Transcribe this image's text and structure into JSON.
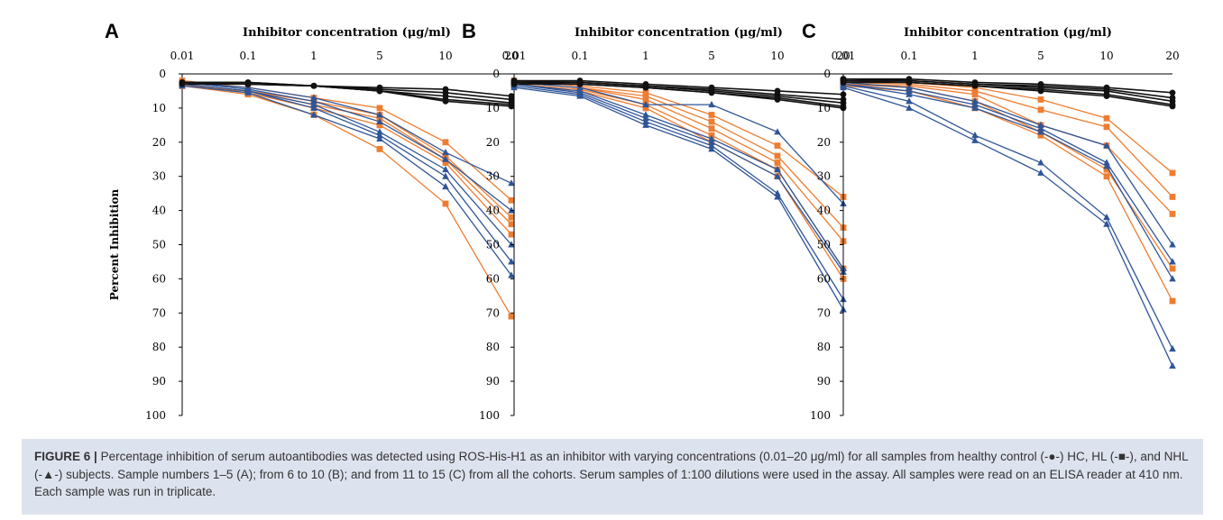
{
  "figure": {
    "caption_label": "FIGURE 6 |",
    "caption_text": "Percentage inhibition of serum autoantibodies was detected using ROS-His-H1 as an inhibitor with varying concentrations (0.01–20 μg/ml) for all samples from healthy control (-●-) HC, HL (-■-), and NHL (-▲-) subjects. Sample numbers 1–5 (A); from 6 to 10 (B); and from 11 to 15 (C) from all the cohorts. Serum samples of 1:100 dilutions were used in the assay. All samples were read on an ELISA reader at 410 nm. Each sample was run in triplicate."
  },
  "colors": {
    "HC": "#111111",
    "HL": "#ED7D31",
    "NHL": "#2F5597"
  },
  "chart_data": [
    {
      "panel": "A",
      "type": "line",
      "xlabel": "Inhibitor concentration (μg/ml)",
      "ylabel": "Percent Inhibition",
      "categories": [
        "0.01",
        "0.1",
        "1",
        "5",
        "10",
        "20"
      ],
      "ylim": [
        0,
        100
      ],
      "y_inverted": true,
      "yticks": [
        0,
        10,
        20,
        30,
        40,
        50,
        60,
        70,
        80,
        90,
        100
      ],
      "series": [
        {
          "group": "HC",
          "marker": "circle",
          "values": [
            2.5,
            2.5,
            3.5,
            4.0,
            4.5,
            6.5
          ]
        },
        {
          "group": "HC",
          "marker": "circle",
          "values": [
            2.5,
            2.5,
            3.5,
            4.5,
            5.5,
            7.5
          ]
        },
        {
          "group": "HC",
          "marker": "circle",
          "values": [
            2.5,
            3.0,
            3.5,
            5.0,
            6.5,
            8.5
          ]
        },
        {
          "group": "HC",
          "marker": "circle",
          "values": [
            2.5,
            3.0,
            3.5,
            5.0,
            7.5,
            9.0
          ]
        },
        {
          "group": "HC",
          "marker": "circle",
          "values": [
            3.0,
            3.0,
            3.5,
            5.0,
            8.0,
            9.5
          ]
        },
        {
          "group": "HL",
          "marker": "square",
          "values": [
            2.0,
            4.0,
            7.0,
            10.0,
            20.0,
            37.0
          ]
        },
        {
          "group": "HL",
          "marker": "square",
          "values": [
            3.0,
            5.0,
            8.0,
            12.0,
            24.0,
            42.0
          ]
        },
        {
          "group": "HL",
          "marker": "square",
          "values": [
            3.5,
            5.0,
            9.0,
            13.0,
            25.0,
            44.0
          ]
        },
        {
          "group": "HL",
          "marker": "square",
          "values": [
            3.0,
            5.5,
            10.0,
            15.0,
            26.0,
            47.0
          ]
        },
        {
          "group": "HL",
          "marker": "square",
          "values": [
            3.5,
            6.0,
            12.0,
            22.0,
            38.0,
            71.0
          ]
        },
        {
          "group": "NHL",
          "marker": "triangle",
          "values": [
            2.5,
            4.0,
            7.0,
            12.0,
            23.0,
            32.0
          ]
        },
        {
          "group": "NHL",
          "marker": "triangle",
          "values": [
            2.5,
            4.5,
            8.0,
            14.0,
            25.0,
            40.0
          ]
        },
        {
          "group": "NHL",
          "marker": "triangle",
          "values": [
            3.0,
            5.0,
            9.0,
            17.0,
            28.0,
            50.0
          ]
        },
        {
          "group": "NHL",
          "marker": "triangle",
          "values": [
            3.0,
            5.0,
            10.0,
            18.0,
            30.0,
            55.0
          ]
        },
        {
          "group": "NHL",
          "marker": "triangle",
          "values": [
            3.5,
            5.5,
            12.0,
            19.0,
            33.0,
            59.0
          ]
        }
      ]
    },
    {
      "panel": "B",
      "type": "line",
      "xlabel": "Inhibitor concentration (μg/ml)",
      "ylabel": "",
      "categories": [
        "0.01",
        "0.1",
        "1",
        "5",
        "10",
        "20"
      ],
      "ylim": [
        0,
        100
      ],
      "y_inverted": true,
      "yticks": [
        0,
        10,
        20,
        30,
        40,
        50,
        60,
        70,
        80,
        90,
        100
      ],
      "series": [
        {
          "group": "HC",
          "marker": "circle",
          "values": [
            2.0,
            2.0,
            3.0,
            4.0,
            5.0,
            6.0
          ]
        },
        {
          "group": "HC",
          "marker": "circle",
          "values": [
            2.0,
            2.5,
            3.5,
            4.5,
            6.0,
            7.5
          ]
        },
        {
          "group": "HC",
          "marker": "circle",
          "values": [
            2.5,
            2.5,
            3.5,
            5.0,
            6.5,
            8.5
          ]
        },
        {
          "group": "HC",
          "marker": "circle",
          "values": [
            2.5,
            3.0,
            4.0,
            5.5,
            7.0,
            9.5
          ]
        },
        {
          "group": "HC",
          "marker": "circle",
          "values": [
            3.0,
            3.0,
            4.0,
            5.5,
            7.5,
            10.0
          ]
        },
        {
          "group": "HL",
          "marker": "square",
          "values": [
            2.0,
            3.5,
            5.5,
            12.0,
            21.0,
            36.0
          ]
        },
        {
          "group": "HL",
          "marker": "square",
          "values": [
            2.5,
            4.0,
            6.5,
            14.0,
            24.0,
            45.0
          ]
        },
        {
          "group": "HL",
          "marker": "square",
          "values": [
            2.5,
            4.0,
            7.5,
            16.0,
            26.0,
            49.0
          ]
        },
        {
          "group": "HL",
          "marker": "square",
          "values": [
            3.0,
            4.5,
            9.0,
            18.0,
            28.0,
            57.0
          ]
        },
        {
          "group": "HL",
          "marker": "square",
          "values": [
            3.0,
            5.0,
            10.0,
            20.0,
            30.0,
            60.0
          ]
        },
        {
          "group": "NHL",
          "marker": "triangle",
          "values": [
            2.5,
            4.0,
            9.0,
            9.0,
            17.0,
            38.0
          ]
        },
        {
          "group": "NHL",
          "marker": "triangle",
          "values": [
            3.0,
            5.0,
            12.0,
            19.0,
            28.0,
            57.0
          ]
        },
        {
          "group": "NHL",
          "marker": "triangle",
          "values": [
            3.0,
            5.5,
            13.0,
            20.0,
            30.0,
            58.0
          ]
        },
        {
          "group": "NHL",
          "marker": "triangle",
          "values": [
            3.5,
            6.0,
            14.0,
            21.0,
            35.0,
            66.0
          ]
        },
        {
          "group": "NHL",
          "marker": "triangle",
          "values": [
            4.0,
            6.5,
            15.0,
            22.0,
            36.0,
            69.0
          ]
        }
      ]
    },
    {
      "panel": "C",
      "type": "line",
      "xlabel": "Inhibitor concentration (μg/ml)",
      "ylabel": "",
      "categories": [
        "0.01",
        "0.1",
        "1",
        "5",
        "10",
        "20"
      ],
      "ylim": [
        0,
        100
      ],
      "y_inverted": true,
      "yticks": [
        0,
        10,
        20,
        30,
        40,
        50,
        60,
        70,
        80,
        90,
        100
      ],
      "series": [
        {
          "group": "HC",
          "marker": "circle",
          "values": [
            1.5,
            1.5,
            2.5,
            3.0,
            4.0,
            5.5
          ]
        },
        {
          "group": "HC",
          "marker": "circle",
          "values": [
            1.5,
            2.0,
            3.0,
            3.5,
            4.5,
            7.0
          ]
        },
        {
          "group": "HC",
          "marker": "circle",
          "values": [
            2.0,
            2.0,
            3.0,
            4.0,
            5.0,
            8.0
          ]
        },
        {
          "group": "HC",
          "marker": "circle",
          "values": [
            2.0,
            2.5,
            3.5,
            4.5,
            6.0,
            9.0
          ]
        },
        {
          "group": "HC",
          "marker": "circle",
          "values": [
            2.5,
            2.5,
            3.5,
            5.0,
            6.5,
            9.5
          ]
        },
        {
          "group": "HL",
          "marker": "square",
          "values": [
            2.0,
            2.5,
            4.0,
            7.5,
            13.0,
            29.0
          ]
        },
        {
          "group": "HL",
          "marker": "square",
          "values": [
            2.5,
            3.0,
            5.0,
            10.5,
            15.5,
            36.0
          ]
        },
        {
          "group": "HL",
          "marker": "square",
          "values": [
            3.0,
            3.5,
            6.0,
            15.0,
            21.0,
            41.0
          ]
        },
        {
          "group": "HL",
          "marker": "square",
          "values": [
            3.0,
            4.0,
            8.0,
            17.0,
            28.0,
            57.0
          ]
        },
        {
          "group": "HL",
          "marker": "square",
          "values": [
            3.5,
            5.0,
            10.0,
            18.0,
            30.0,
            66.5
          ]
        },
        {
          "group": "NHL",
          "marker": "triangle",
          "values": [
            2.5,
            4.0,
            8.0,
            15.0,
            21.0,
            50.0
          ]
        },
        {
          "group": "NHL",
          "marker": "triangle",
          "values": [
            3.0,
            5.0,
            9.0,
            16.0,
            26.0,
            55.0
          ]
        },
        {
          "group": "NHL",
          "marker": "triangle",
          "values": [
            3.0,
            6.0,
            10.0,
            17.0,
            27.0,
            60.0
          ]
        },
        {
          "group": "NHL",
          "marker": "triangle",
          "values": [
            3.5,
            8.0,
            18.0,
            26.0,
            42.0,
            80.5
          ]
        },
        {
          "group": "NHL",
          "marker": "triangle",
          "values": [
            4.0,
            10.0,
            19.5,
            29.0,
            44.0,
            85.5
          ]
        }
      ]
    }
  ]
}
